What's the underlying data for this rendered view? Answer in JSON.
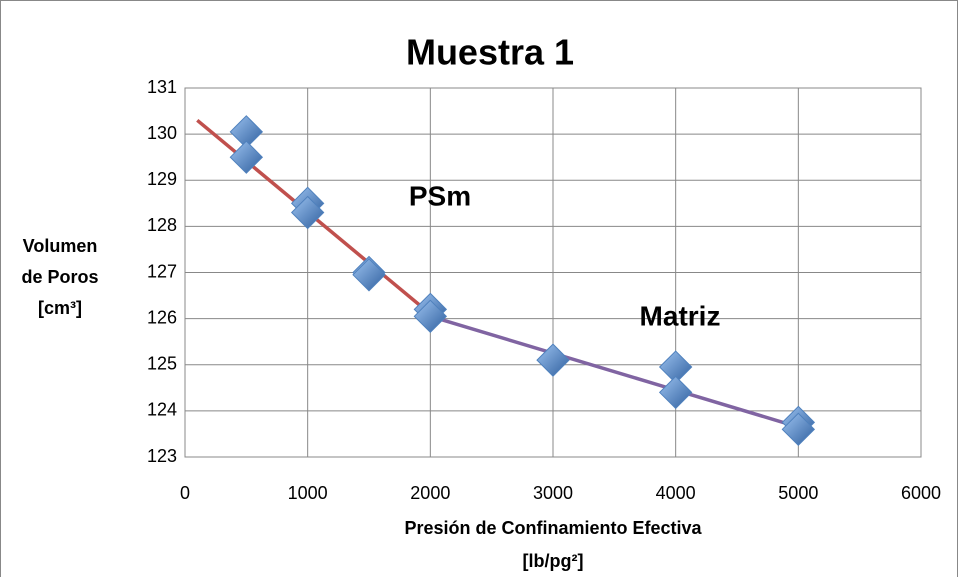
{
  "chart_data": {
    "type": "scatter",
    "title": "Muestra 1",
    "x_label": [
      "Presión de Confinamiento Efectiva",
      "[lb/pg²]"
    ],
    "y_label": [
      "Volumen",
      "de Poros",
      "[cm³]"
    ],
    "annotations": [
      "PSm",
      "Matriz"
    ],
    "series": [
      {
        "color": "#4f81bd",
        "x": [
          500,
          500,
          1000,
          1000,
          1500,
          1500,
          2000,
          2000,
          3000,
          4000,
          4000,
          5000,
          5000
        ],
        "values": [
          130.05,
          129.5,
          128.5,
          128.3,
          127.0,
          126.95,
          126.2,
          126.05,
          125.1,
          124.95,
          124.4,
          123.75,
          123.6
        ]
      }
    ],
    "trendlines": [
      {
        "color": "#c0504d",
        "x": [
          100,
          2000
        ],
        "values": [
          130.3,
          126.1
        ]
      },
      {
        "color": "#8064a2",
        "x": [
          2000,
          5000
        ],
        "values": [
          126.05,
          123.65
        ]
      }
    ],
    "xlim": [
      0,
      6000
    ],
    "xticks": [
      0,
      1000,
      2000,
      3000,
      4000,
      5000,
      6000
    ],
    "ylim": [
      123,
      131
    ],
    "yticks": [
      123,
      124,
      125,
      126,
      127,
      128,
      129,
      130,
      131
    ],
    "grid": true
  }
}
